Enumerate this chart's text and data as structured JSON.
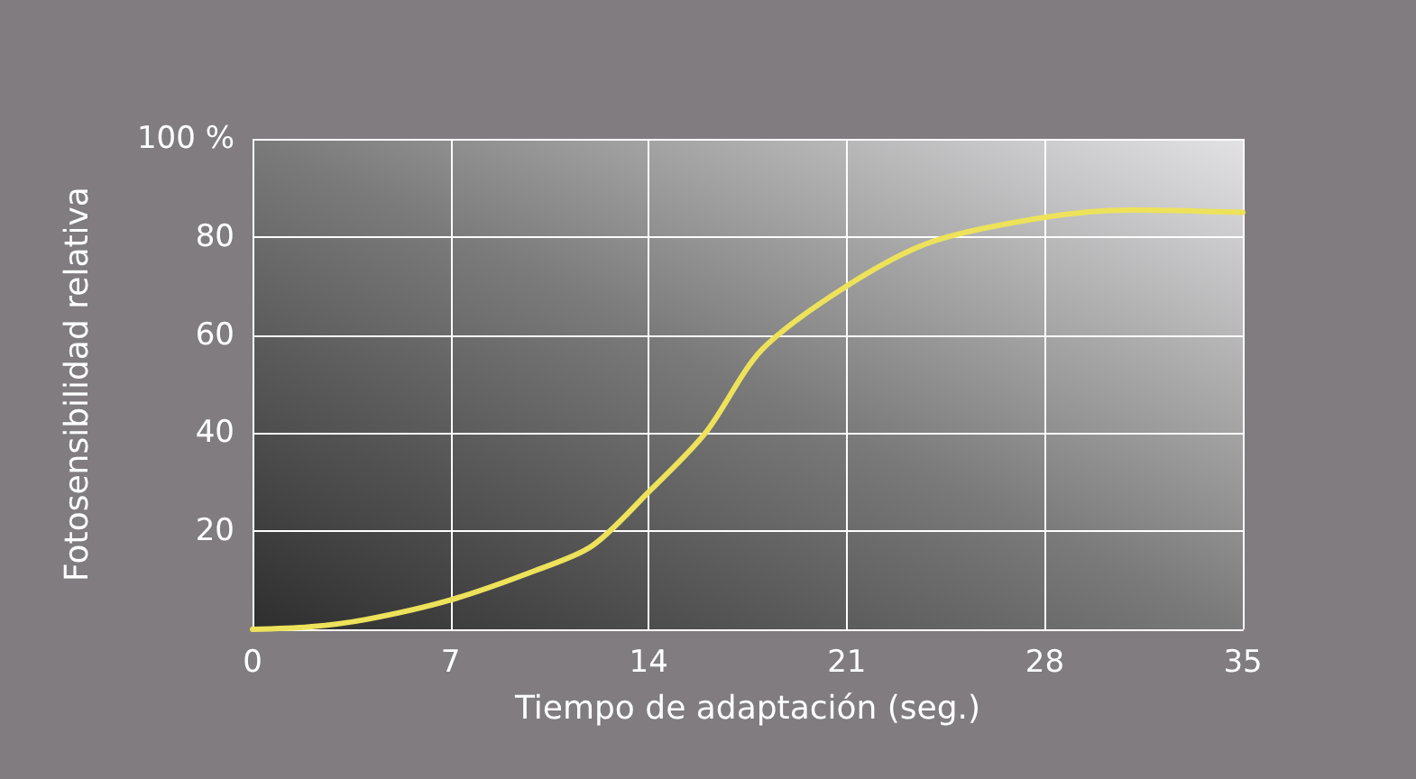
{
  "chart_data": {
    "type": "line",
    "xlabel": "Tiempo de adaptación (seg.)",
    "ylabel": "Fotosensibilidad relativa",
    "x": [
      0,
      2,
      4,
      7,
      10,
      12,
      14,
      16,
      18,
      21,
      24,
      28,
      31,
      35
    ],
    "series": [
      {
        "color": "#ede25a",
        "values": [
          0,
          0.5,
          2,
          6,
          12,
          17,
          28,
          40,
          57,
          70,
          79,
          84,
          85.5,
          85
        ]
      }
    ],
    "xlim": [
      0,
      35
    ],
    "xticks": [
      0,
      7,
      14,
      21,
      28,
      35
    ],
    "ylim": [
      0,
      100
    ],
    "yticks": [
      {
        "value": 0,
        "label": null
      },
      20,
      40,
      60,
      80,
      {
        "value": 100,
        "label": "100 %"
      }
    ],
    "grid": true,
    "marker": "none",
    "line_style": "solid"
  }
}
